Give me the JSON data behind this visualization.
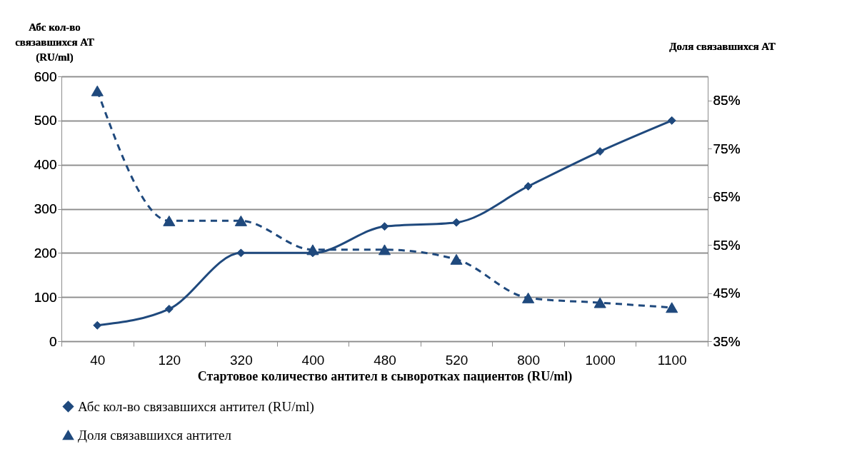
{
  "chart_data": {
    "type": "line",
    "xlabel": "Стартовое количество антител в сыворотках пациентов (RU/ml)",
    "ylabel": "Абс кол-во\nсвязавшихся АТ\n(RU/ml)",
    "y2label": "Доля  связавшихся АТ",
    "categories": [
      "40",
      "120",
      "320",
      "400",
      "480",
      "520",
      "800",
      "1000",
      "1100"
    ],
    "series": [
      {
        "name": "Абс кол-во связавшихся антител (RU/ml)",
        "color": "#1f497d",
        "marker": "diamond",
        "line_style": "solid",
        "values": [
          36,
          73,
          200,
          200,
          260,
          269,
          351,
          430,
          500
        ]
      },
      {
        "name": "Доля связавшихся антител",
        "color": "#1f497d",
        "marker": "triangle",
        "line_style": "dashed",
        "axis": "y2",
        "values": [
          87,
          60,
          60,
          54,
          54,
          52,
          44,
          43,
          42
        ]
      }
    ],
    "ylim": [
      0,
      600
    ],
    "yticks": [
      0,
      100,
      200,
      300,
      400,
      500,
      600
    ],
    "y2lim": [
      35,
      90
    ],
    "y2ticks": [
      {
        "value": 35,
        "label": "35%"
      },
      {
        "value": 45,
        "label": "45%"
      },
      {
        "value": 55,
        "label": "55%"
      },
      {
        "value": 65,
        "label": "65%"
      },
      {
        "value": 75,
        "label": "75%"
      },
      {
        "value": 85,
        "label": "85%"
      }
    ],
    "grid": "y",
    "legend": "bottom"
  }
}
